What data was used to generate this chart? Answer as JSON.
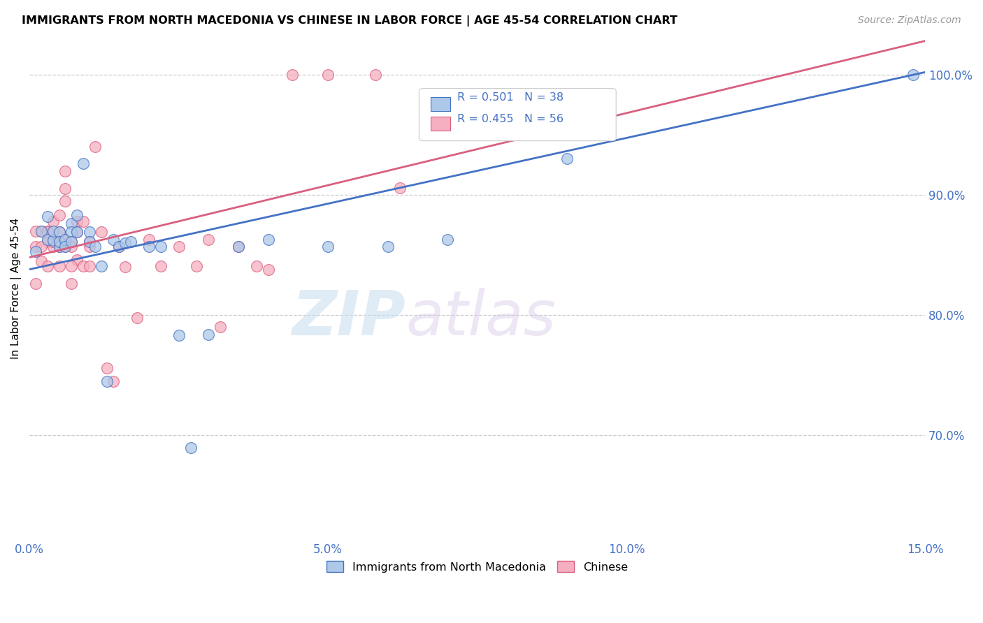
{
  "title": "IMMIGRANTS FROM NORTH MACEDONIA VS CHINESE IN LABOR FORCE | AGE 45-54 CORRELATION CHART",
  "source": "Source: ZipAtlas.com",
  "ylabel": "In Labor Force | Age 45-54",
  "xlim": [
    0.0,
    0.15
  ],
  "ylim": [
    0.615,
    1.03
  ],
  "ytick_labels": [
    "70.0%",
    "80.0%",
    "90.0%",
    "100.0%"
  ],
  "ytick_values": [
    0.7,
    0.8,
    0.9,
    1.0
  ],
  "xtick_labels": [
    "0.0%",
    "5.0%",
    "10.0%",
    "15.0%"
  ],
  "xtick_values": [
    0.0,
    0.05,
    0.1,
    0.15
  ],
  "blue_R": 0.501,
  "blue_N": 38,
  "pink_R": 0.455,
  "pink_N": 56,
  "blue_color": "#adc8e8",
  "pink_color": "#f5afc0",
  "blue_line_color": "#4472c4",
  "pink_line_color": "#d95f7f",
  "legend_label_blue": "Immigrants from North Macedonia",
  "legend_label_pink": "Chinese",
  "watermark_zip": "ZIP",
  "watermark_atlas": "atlas",
  "blue_x": [
    0.001,
    0.002,
    0.003,
    0.003,
    0.004,
    0.004,
    0.005,
    0.005,
    0.005,
    0.006,
    0.006,
    0.007,
    0.007,
    0.007,
    0.008,
    0.008,
    0.009,
    0.01,
    0.01,
    0.011,
    0.012,
    0.013,
    0.014,
    0.015,
    0.016,
    0.017,
    0.02,
    0.022,
    0.025,
    0.027,
    0.03,
    0.035,
    0.04,
    0.05,
    0.06,
    0.07,
    0.09,
    0.148
  ],
  "blue_y": [
    0.853,
    0.87,
    0.882,
    0.863,
    0.862,
    0.87,
    0.857,
    0.869,
    0.861,
    0.863,
    0.857,
    0.876,
    0.869,
    0.861,
    0.883,
    0.869,
    0.926,
    0.869,
    0.861,
    0.857,
    0.841,
    0.745,
    0.863,
    0.857,
    0.86,
    0.861,
    0.857,
    0.857,
    0.783,
    0.69,
    0.784,
    0.857,
    0.863,
    0.857,
    0.857,
    0.863,
    0.93,
    1.0
  ],
  "pink_x": [
    0.001,
    0.001,
    0.002,
    0.002,
    0.003,
    0.003,
    0.003,
    0.004,
    0.004,
    0.004,
    0.005,
    0.005,
    0.005,
    0.005,
    0.006,
    0.006,
    0.006,
    0.006,
    0.007,
    0.007,
    0.007,
    0.008,
    0.008,
    0.008,
    0.009,
    0.009,
    0.01,
    0.01,
    0.01,
    0.011,
    0.012,
    0.013,
    0.014,
    0.015,
    0.016,
    0.018,
    0.02,
    0.022,
    0.025,
    0.028,
    0.03,
    0.032,
    0.035,
    0.038,
    0.04,
    0.044,
    0.05,
    0.058,
    0.062,
    0.001,
    0.002,
    0.003,
    0.004,
    0.005,
    0.006,
    0.007
  ],
  "pink_y": [
    0.857,
    0.826,
    0.87,
    0.845,
    0.87,
    0.861,
    0.841,
    0.878,
    0.863,
    0.857,
    0.883,
    0.869,
    0.861,
    0.841,
    0.92,
    0.905,
    0.895,
    0.857,
    0.861,
    0.857,
    0.826,
    0.878,
    0.869,
    0.846,
    0.878,
    0.841,
    0.861,
    0.857,
    0.841,
    0.94,
    0.869,
    0.756,
    0.745,
    0.857,
    0.84,
    0.798,
    0.863,
    0.841,
    0.857,
    0.841,
    0.863,
    0.79,
    0.857,
    0.841,
    0.838,
    1.0,
    1.0,
    1.0,
    0.906,
    0.87,
    0.857,
    0.869,
    0.861,
    0.857,
    0.863,
    0.841
  ]
}
